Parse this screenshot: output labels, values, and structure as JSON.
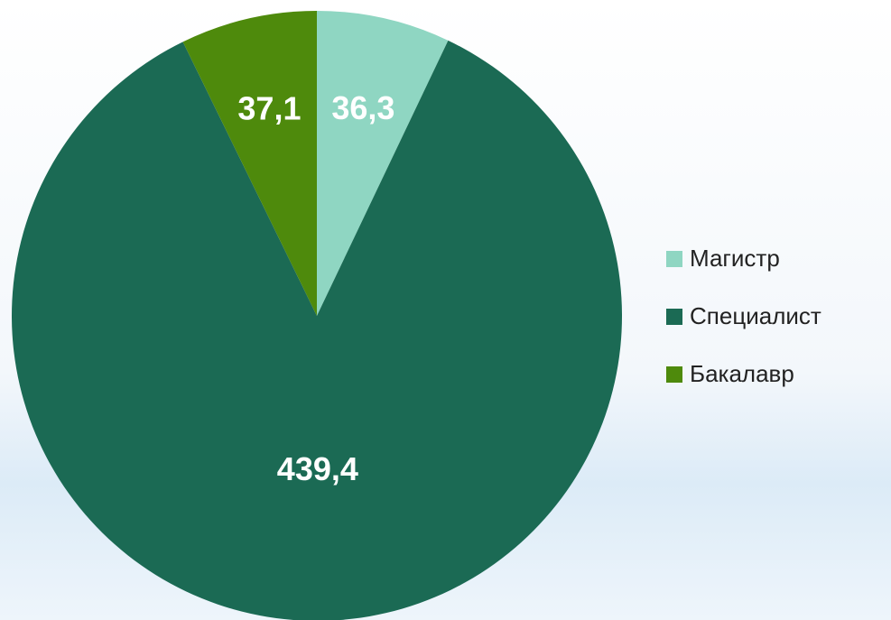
{
  "chart_data": {
    "type": "pie",
    "categories": [
      "Магистр",
      "Специалист",
      "Бакалавр"
    ],
    "values": [
      36.3,
      439.4,
      37.1
    ],
    "value_labels": [
      "36,3",
      "439,4",
      "37,1"
    ],
    "colors": [
      "#8fd6c2",
      "#1b6a54",
      "#4e8a0c"
    ],
    "legend": "right"
  }
}
